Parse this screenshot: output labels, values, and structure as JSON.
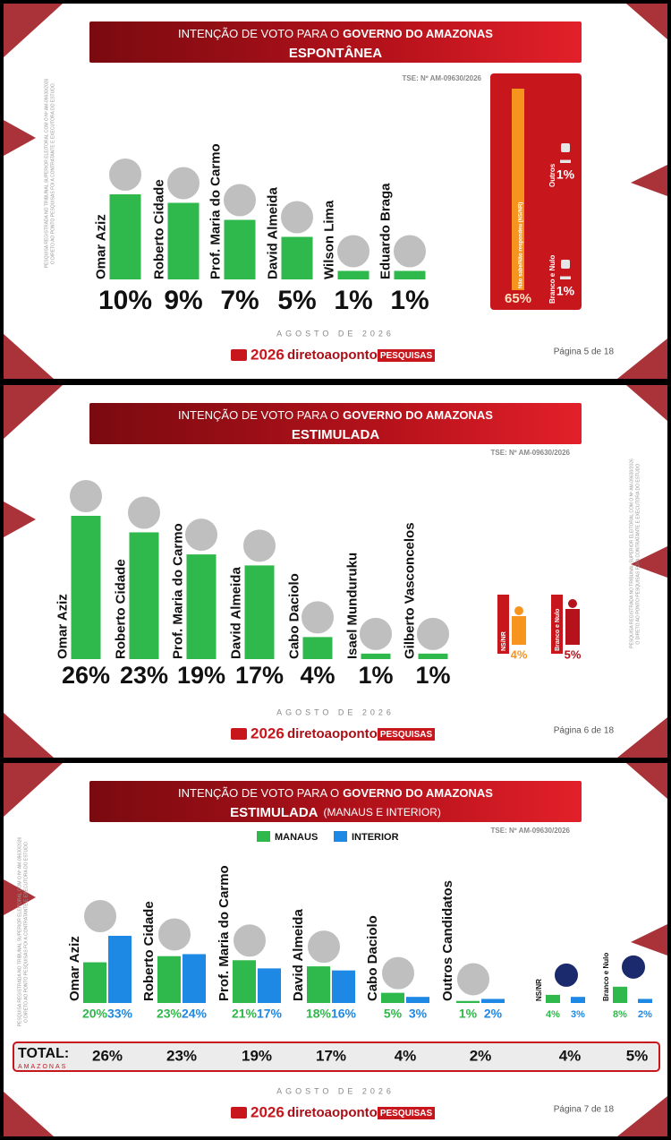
{
  "chart_data": [
    {
      "type": "bar",
      "title": "INTENÇÃO DE VOTO PARA O",
      "title_bold": "GOVERNO DO AMAZONAS",
      "subtitle": "ESPONTÂNEA",
      "note": "TSE: Nº AM-09630/2026",
      "legal": [
        "PESQUISA REGISTRADA NO TRIBUNAL SUPERIOR ELEITORAL COM O Nº AM-09630/2026",
        "O DIRETO AO PONTO PESQUISAS FOI A CONTRATANTE E EXECUTORA DO ESTUDO."
      ],
      "categories": [
        "Omar Aziz",
        "Roberto Cidade",
        "Prof. Maria do Carmo",
        "David Almeida",
        "Wilson Lima",
        "Eduardo Braga"
      ],
      "values": [
        10,
        9,
        7,
        5,
        1,
        1
      ],
      "value_labels": [
        "10%",
        "9%",
        "7%",
        "5%",
        "1%",
        "1%"
      ],
      "color": "#2fb84b",
      "side": {
        "categories": [
          "Não sabe/Não respondeu (NS/NR)",
          "Outros",
          "Branco e Nulo"
        ],
        "values": [
          65,
          1,
          1
        ],
        "value_labels": [
          "65%",
          "1%",
          "1%"
        ],
        "colors": [
          "#f7941d",
          "#e6e6e6",
          "#e6e6e6"
        ]
      },
      "date": "AGOSTO DE 2026",
      "brand": {
        "year": "2026",
        "name": "diretoaoponto",
        "tag": "PESQUISAS"
      },
      "page": "Página 5 de 18"
    },
    {
      "type": "bar",
      "title": "INTENÇÃO DE VOTO PARA O",
      "title_bold": "GOVERNO DO AMAZONAS",
      "subtitle": "ESTIMULADA",
      "note": "TSE: Nº AM-09630/2026",
      "legal": [
        "PESQUISA REGISTRADA NO TRIBUNAL SUPERIOR ELEITORAL COM O Nº AM-09630/2026",
        "O DIRETO AO PONTO PESQUISAS FOI A CONTRATANTE E EXECUTORA DO ESTUDO."
      ],
      "categories": [
        "Omar Aziz",
        "Roberto Cidade",
        "Prof. Maria do Carmo",
        "David Almeida",
        "Cabo Daciolo",
        "Isael Munduruku",
        "Gilberto Vasconcelos"
      ],
      "values": [
        26,
        23,
        19,
        17,
        4,
        1,
        1
      ],
      "value_labels": [
        "26%",
        "23%",
        "19%",
        "17%",
        "4%",
        "1%",
        "1%"
      ],
      "color": "#2fb84b",
      "side": {
        "categories": [
          "NS/NR",
          "Branco e Nulo"
        ],
        "values": [
          4,
          5
        ],
        "value_labels": [
          "4%",
          "5%"
        ],
        "colors": [
          "#f7941d",
          "#b5121b"
        ]
      },
      "date": "AGOSTO DE 2026",
      "brand": {
        "year": "2026",
        "name": "diretoaoponto",
        "tag": "PESQUISAS"
      },
      "page": "Página 6 de 18"
    },
    {
      "type": "bar",
      "title": "INTENÇÃO DE VOTO PARA O",
      "title_bold": "GOVERNO DO AMAZONAS",
      "subtitle": "ESTIMULADA",
      "subtitle_note": "(MANAUS E INTERIOR)",
      "note": "TSE: Nº AM-09630/2026",
      "legal": [
        "PESQUISA REGISTRADA NO TRIBUNAL SUPERIOR ELEITORAL COM O Nº AM-09630/2026",
        "O DIRETO AO PONTO PESQUISAS FOI A CONTRATANTE E EXECUTORA DO ESTUDO."
      ],
      "categories": [
        "Omar Aziz",
        "Roberto Cidade",
        "Prof. Maria do Carmo",
        "David Almeida",
        "Cabo Daciolo",
        "Outros Candidatos",
        "NS/NR",
        "Branco e Nulo"
      ],
      "series": [
        {
          "name": "MANAUS",
          "color": "#2fb84b",
          "values": [
            20,
            23,
            21,
            18,
            5,
            1,
            4,
            8
          ],
          "value_labels": [
            "20%",
            "23%",
            "21%",
            "18%",
            "5%",
            "1%",
            "4%",
            "8%"
          ]
        },
        {
          "name": "INTERIOR",
          "color": "#1e88e5",
          "values": [
            33,
            24,
            17,
            16,
            3,
            2,
            3,
            2
          ],
          "value_labels": [
            "33%",
            "24%",
            "17%",
            "16%",
            "3%",
            "2%",
            "3%",
            "2%"
          ]
        }
      ],
      "total_label": "TOTAL:",
      "total_sub": "AMAZONAS",
      "totals": [
        26,
        23,
        19,
        17,
        4,
        2,
        4,
        5
      ],
      "total_labels": [
        "26%",
        "23%",
        "19%",
        "17%",
        "4%",
        "2%",
        "4%",
        "5%"
      ],
      "date": "AGOSTO DE 2026",
      "brand": {
        "year": "2026",
        "name": "diretoaoponto",
        "tag": "PESQUISAS"
      },
      "page": "Página 7 de 18"
    }
  ]
}
